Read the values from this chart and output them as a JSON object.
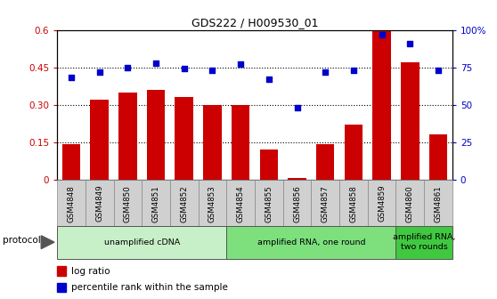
{
  "title": "GDS222 / H009530_01",
  "samples": [
    "GSM4848",
    "GSM4849",
    "GSM4850",
    "GSM4851",
    "GSM4852",
    "GSM4853",
    "GSM4854",
    "GSM4855",
    "GSM4856",
    "GSM4857",
    "GSM4858",
    "GSM4859",
    "GSM4860",
    "GSM4861"
  ],
  "log_ratio": [
    0.14,
    0.32,
    0.35,
    0.36,
    0.33,
    0.3,
    0.3,
    0.12,
    0.005,
    0.14,
    0.22,
    0.6,
    0.47,
    0.18
  ],
  "percentile": [
    0.68,
    0.72,
    0.75,
    0.78,
    0.74,
    0.73,
    0.77,
    0.67,
    0.48,
    0.72,
    0.73,
    0.97,
    0.91,
    0.73
  ],
  "bar_color": "#cc0000",
  "dot_color": "#0000cc",
  "ylim_left": [
    0,
    0.6
  ],
  "ylim_right": [
    0,
    1.0
  ],
  "yticks_left": [
    0,
    0.15,
    0.3,
    0.45,
    0.6
  ],
  "yticks_right": [
    0,
    0.25,
    0.5,
    0.75,
    1.0
  ],
  "ytick_labels_left": [
    "0",
    "0.15",
    "0.30",
    "0.45",
    "0.6"
  ],
  "ytick_labels_right": [
    "0",
    "25",
    "50",
    "75",
    "100%"
  ],
  "hlines": [
    0.15,
    0.3,
    0.45
  ],
  "protocol_groups": [
    {
      "label": "unamplified cDNA",
      "start": 0,
      "end": 5,
      "color": "#c8f0c8"
    },
    {
      "label": "amplified RNA, one round",
      "start": 6,
      "end": 11,
      "color": "#7de07d"
    },
    {
      "label": "amplified RNA,\ntwo rounds",
      "start": 12,
      "end": 13,
      "color": "#40c840"
    }
  ],
  "protocol_label": "protocol",
  "legend_items": [
    {
      "color": "#cc0000",
      "label": "log ratio"
    },
    {
      "color": "#0000cc",
      "label": "percentile rank within the sample"
    }
  ],
  "background_color": "#ffffff",
  "tick_bg_color": "#d0d0d0",
  "fig_width": 5.58,
  "fig_height": 3.36,
  "dpi": 100
}
